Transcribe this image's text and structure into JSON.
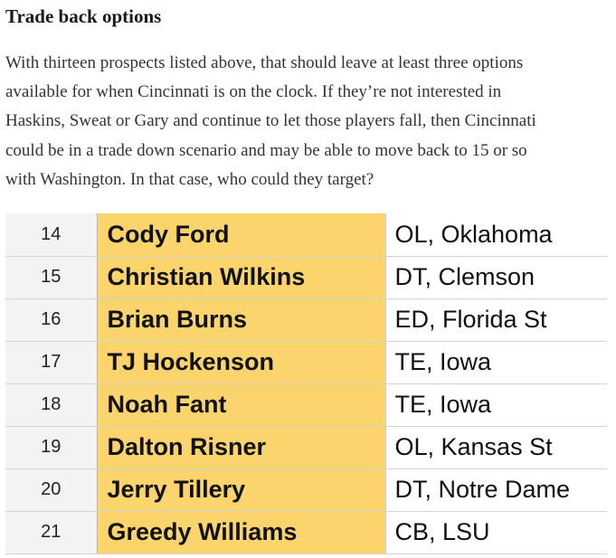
{
  "section": {
    "title": "Trade back options",
    "paragraph_lines": [
      "With thirteen prospects listed above, that should leave at least three options",
      "available for when Cincinnati is on the clock. If they’re not interested in",
      "Haskins, Sweat or Gary and continue to let those players fall, then Cincinnati",
      "could be in a trade down scenario and may be able to move back to 15 or so",
      "with Washington. In that case, who could they target?"
    ]
  },
  "rankings": {
    "rows": [
      {
        "rank": "14",
        "player": "Cody Ford",
        "position": "OL, Oklahoma"
      },
      {
        "rank": "15",
        "player": "Christian Wilkins",
        "position": "DT, Clemson"
      },
      {
        "rank": "16",
        "player": "Brian Burns",
        "position": "ED, Florida St"
      },
      {
        "rank": "17",
        "player": "TJ Hockenson",
        "position": "TE, Iowa"
      },
      {
        "rank": "18",
        "player": "Noah Fant",
        "position": "TE, Iowa"
      },
      {
        "rank": "19",
        "player": "Dalton Risner",
        "position": "OL, Kansas St"
      },
      {
        "rank": "20",
        "player": "Jerry Tillery",
        "position": "DT, Notre Dame"
      },
      {
        "rank": "21",
        "player": "Greedy Williams",
        "position": "CB, LSU"
      }
    ]
  },
  "colors": {
    "player_highlight": "#fbd46b",
    "rank_background": "#f3f3f3"
  }
}
